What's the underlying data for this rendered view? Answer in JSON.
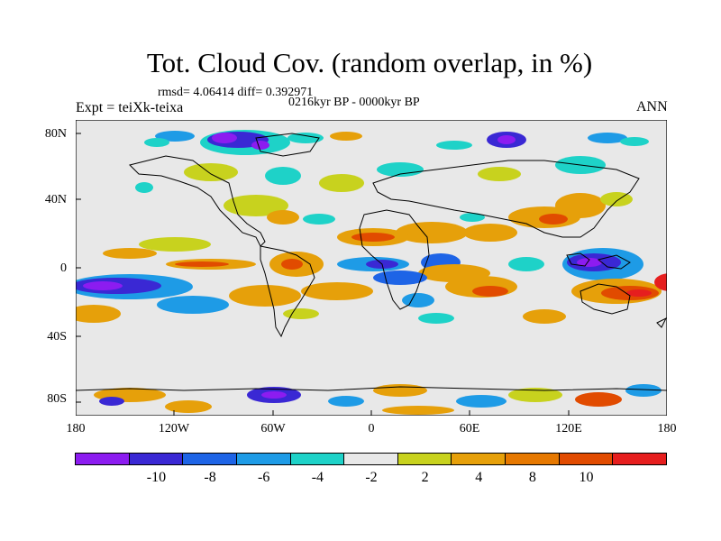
{
  "title": "Tot. Cloud Cov. (random overlap, in %)",
  "stats": "rmsd= 4.06414 diff= 0.392971",
  "experiment": "Expt = teiXk-teixa",
  "period": "0216kyr BP - 0000kyr BP",
  "season": "ANN",
  "y_ticks": [
    "80N",
    "40N",
    "0",
    "40S",
    "80S"
  ],
  "x_ticks": [
    "180",
    "120W",
    "60W",
    "0",
    "60E",
    "120E",
    "180"
  ],
  "colorbar": {
    "colors": [
      "#8c1cf0",
      "#3a28d4",
      "#1e64e6",
      "#1e9be6",
      "#1ed2c8",
      "#e8e8e8",
      "#c8d21e",
      "#e6a00a",
      "#e67800",
      "#e14b00",
      "#e61e1e"
    ],
    "labels": [
      "-10",
      "-8",
      "-6",
      "-4",
      "-2",
      "2",
      "4",
      "8",
      "10"
    ]
  },
  "chart_data": {
    "type": "heatmap",
    "title": "Tot. Cloud Cov. (random overlap, in %)",
    "projection": "cylindrical equidistant",
    "lon_range": [
      -180,
      180
    ],
    "lat_range": [
      -90,
      90
    ],
    "levels": [
      -10,
      -8,
      -6,
      -4,
      -2,
      2,
      4,
      8,
      10
    ],
    "fields": [
      {
        "lon": -150,
        "lat": -12,
        "value": -10
      },
      {
        "lon": -120,
        "lat": -20,
        "value": -8
      },
      {
        "lon": -95,
        "lat": -25,
        "value": -5
      },
      {
        "lon": -150,
        "lat": 10,
        "value": 5
      },
      {
        "lon": -60,
        "lat": 2,
        "value": 8
      },
      {
        "lon": -10,
        "lat": 10,
        "value": 8
      },
      {
        "lon": 30,
        "lat": 15,
        "value": 8
      },
      {
        "lon": 80,
        "lat": 20,
        "value": 9
      },
      {
        "lon": 100,
        "lat": 35,
        "value": 8
      },
      {
        "lon": 150,
        "lat": -12,
        "value": 10
      },
      {
        "lon": 120,
        "lat": 0,
        "value": -10
      },
      {
        "lon": 60,
        "lat": 0,
        "value": -7
      },
      {
        "lon": 0,
        "lat": -15,
        "value": -7
      },
      {
        "lon": -30,
        "lat": -15,
        "value": 6
      },
      {
        "lon": -90,
        "lat": 75,
        "value": -10
      },
      {
        "lon": -120,
        "lat": 78,
        "value": -8
      },
      {
        "lon": 70,
        "lat": 78,
        "value": -8
      },
      {
        "lon": -110,
        "lat": -82,
        "value": -9
      },
      {
        "lon": 30,
        "lat": -82,
        "value": 6
      },
      {
        "lon": -60,
        "lat": -45,
        "value": -3
      },
      {
        "lon": 40,
        "lat": -25,
        "value": -5
      }
    ]
  }
}
